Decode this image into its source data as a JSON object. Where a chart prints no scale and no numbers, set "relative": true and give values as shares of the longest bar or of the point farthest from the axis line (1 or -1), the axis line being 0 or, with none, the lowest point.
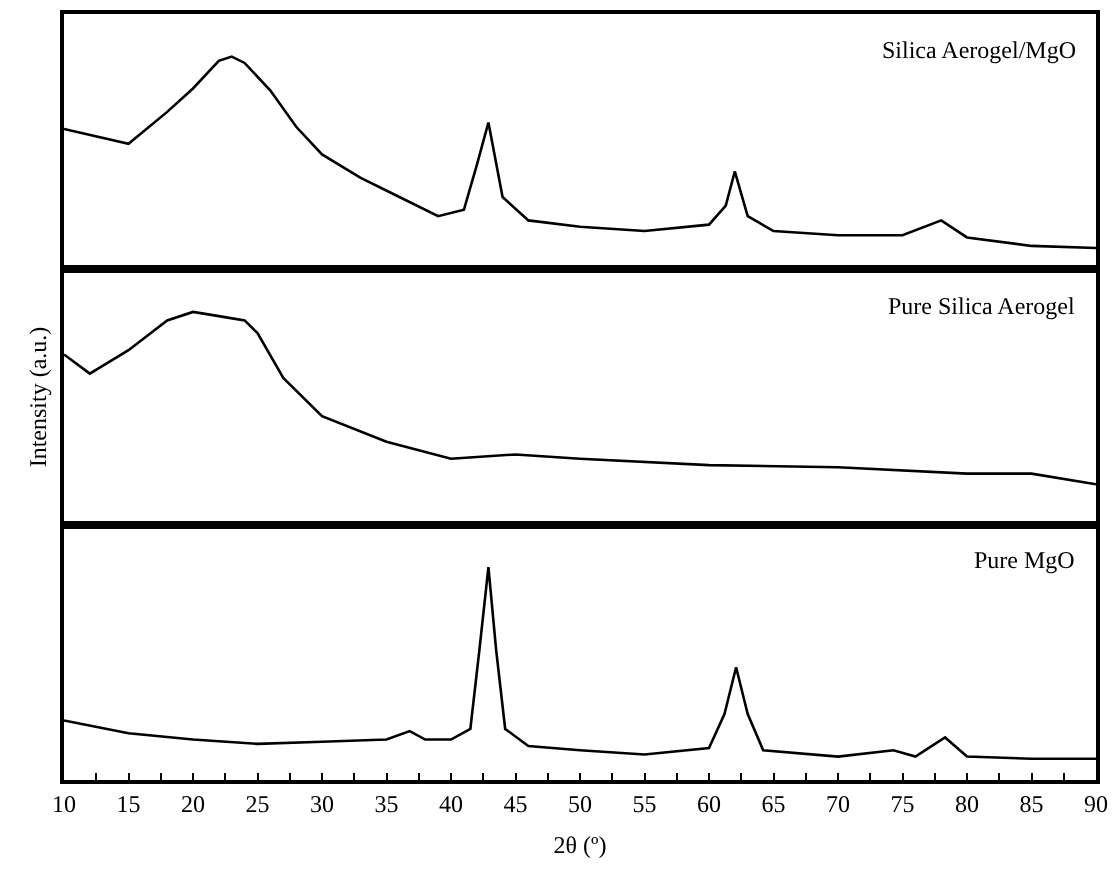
{
  "chart_data": [
    {
      "type": "line",
      "relative": true,
      "tick_labels": false,
      "grid": false,
      "xlim": [
        10,
        90
      ],
      "x": [
        10,
        15,
        18,
        20,
        22,
        23,
        24,
        26,
        28,
        30,
        33,
        36,
        39,
        41,
        42,
        42.9,
        44,
        46,
        50,
        55,
        60,
        61.3,
        62,
        63,
        65,
        70,
        75,
        78,
        80,
        85,
        90
      ],
      "series": [
        {
          "name": "Silica Aerogel/MgO",
          "color": "#000000",
          "values": [
            0.66,
            0.59,
            0.74,
            0.85,
            0.98,
            1,
            0.97,
            0.84,
            0.67,
            0.54,
            0.43,
            0.34,
            0.25,
            0.28,
            0.49,
            0.69,
            0.34,
            0.23,
            0.2,
            0.18,
            0.21,
            0.3,
            0.46,
            0.25,
            0.18,
            0.16,
            0.16,
            0.23,
            0.15,
            0.11,
            0.1
          ]
        }
      ]
    },
    {
      "type": "line",
      "relative": true,
      "tick_labels": false,
      "grid": false,
      "ylabel": "Intensity (a.u.)",
      "xlim": [
        10,
        90
      ],
      "x": [
        10,
        12,
        15,
        18,
        20,
        22,
        24,
        25,
        27,
        30,
        35,
        40,
        45,
        50,
        60,
        70,
        80,
        85,
        90
      ],
      "series": [
        {
          "name": "Pure Silica Aerogel",
          "color": "#000000",
          "values": [
            0.8,
            0.71,
            0.82,
            0.96,
            1,
            0.98,
            0.96,
            0.9,
            0.69,
            0.51,
            0.39,
            0.31,
            0.33,
            0.31,
            0.28,
            0.27,
            0.24,
            0.24,
            0.19
          ]
        }
      ]
    },
    {
      "type": "line",
      "relative": true,
      "tick_labels": "x",
      "grid": false,
      "xlabel": "2θ (º)",
      "xlim": [
        10,
        90
      ],
      "xticks": [
        10,
        {
          "value": 12.5,
          "label": null
        },
        15,
        {
          "value": 17.5,
          "label": null
        },
        20,
        {
          "value": 22.5,
          "label": null
        },
        25,
        {
          "value": 27.5,
          "label": null
        },
        30,
        {
          "value": 32.5,
          "label": null
        },
        35,
        {
          "value": 37.5,
          "label": null
        },
        40,
        {
          "value": 42.5,
          "label": null
        },
        45,
        {
          "value": 47.5,
          "label": null
        },
        50,
        {
          "value": 52.5,
          "label": null
        },
        55,
        {
          "value": 57.5,
          "label": null
        },
        60,
        {
          "value": 62.5,
          "label": null
        },
        65,
        {
          "value": 67.5,
          "label": null
        },
        70,
        {
          "value": 72.5,
          "label": null
        },
        75,
        {
          "value": 77.5,
          "label": null
        },
        80,
        {
          "value": 82.5,
          "label": null
        },
        85,
        {
          "value": 87.5,
          "label": null
        },
        90
      ],
      "x": [
        10,
        15,
        20,
        25,
        30,
        35,
        36.8,
        38,
        40,
        41.5,
        42.2,
        42.9,
        43.5,
        44.2,
        46,
        50,
        55,
        60,
        61.2,
        62.1,
        63,
        64.2,
        70,
        74.3,
        76,
        78.3,
        80,
        85,
        90
      ],
      "series": [
        {
          "name": "Pure MgO",
          "color": "#000000",
          "values": [
            0.28,
            0.22,
            0.19,
            0.17,
            0.18,
            0.19,
            0.23,
            0.19,
            0.19,
            0.24,
            0.61,
            1,
            0.61,
            0.24,
            0.16,
            0.14,
            0.12,
            0.15,
            0.31,
            0.53,
            0.31,
            0.14,
            0.11,
            0.14,
            0.11,
            0.2,
            0.11,
            0.1,
            0.1
          ]
        }
      ]
    }
  ]
}
